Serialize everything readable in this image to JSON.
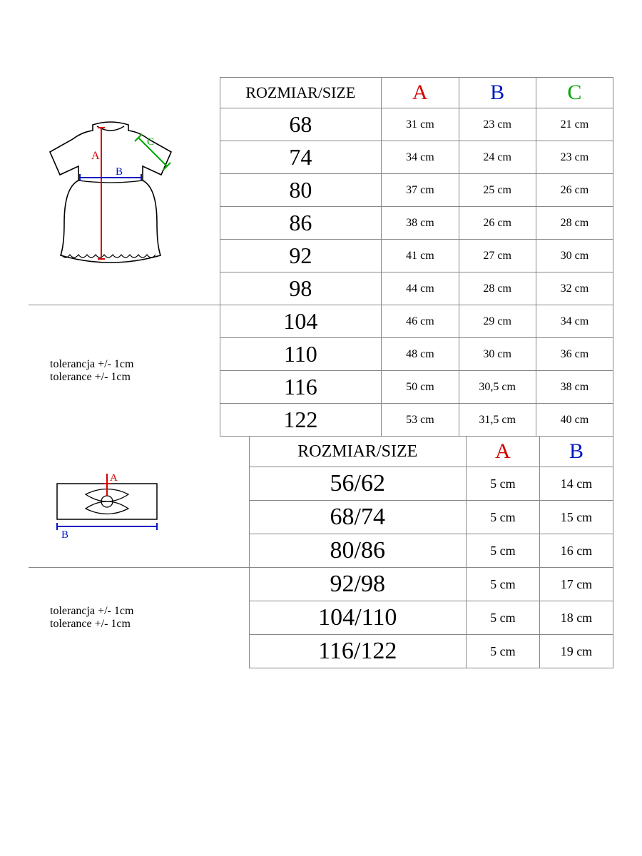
{
  "colors": {
    "A": "#d40000",
    "B": "#0018c4",
    "C": "#00a800",
    "border": "#888888",
    "text": "#000000",
    "bg": "#ffffff"
  },
  "table1": {
    "header": {
      "size_label": "ROZMIAR/SIZE",
      "A": "A",
      "B": "B",
      "C": "C"
    },
    "rows": [
      {
        "size": "68",
        "A": "31 cm",
        "B": "23 cm",
        "C": "21 cm"
      },
      {
        "size": "74",
        "A": "34 cm",
        "B": "24 cm",
        "C": "23 cm"
      },
      {
        "size": "80",
        "A": "37 cm",
        "B": "25 cm",
        "C": "26 cm"
      },
      {
        "size": "86",
        "A": "38 cm",
        "B": "26 cm",
        "C": "28 cm"
      },
      {
        "size": "92",
        "A": "41 cm",
        "B": "27 cm",
        "C": "30 cm"
      },
      {
        "size": "98",
        "A": "44 cm",
        "B": "28 cm",
        "C": "32 cm"
      },
      {
        "size": "104",
        "A": "46 cm",
        "B": "29 cm",
        "C": "34 cm"
      },
      {
        "size": "110",
        "A": "48 cm",
        "B": "30 cm",
        "C": "36 cm"
      },
      {
        "size": "116",
        "A": "50 cm",
        "B": "30,5 cm",
        "C": "38 cm"
      },
      {
        "size": "122",
        "A": "53 cm",
        "B": "31,5 cm",
        "C": "40 cm"
      }
    ],
    "tolerance": {
      "pl": "tolerancja +/- 1cm",
      "en": "tolerance +/- 1cm"
    },
    "diagram": {
      "labels": {
        "A": "A",
        "B": "B",
        "C": "C"
      }
    },
    "col_widths": [
      "260px",
      "220px",
      "105px",
      "105px",
      "105px"
    ]
  },
  "table2": {
    "header": {
      "size_label": "ROZMIAR/SIZE",
      "A": "A",
      "B": "B"
    },
    "rows": [
      {
        "size": "56/62",
        "A": "5 cm",
        "B": "14 cm"
      },
      {
        "size": "68/74",
        "A": "5 cm",
        "B": "15 cm"
      },
      {
        "size": "80/86",
        "A": "5 cm",
        "B": "16 cm"
      },
      {
        "size": "92/98",
        "A": "5 cm",
        "B": "17 cm"
      },
      {
        "size": "104/110",
        "A": "5 cm",
        "B": "18 cm"
      },
      {
        "size": "116/122",
        "A": "5 cm",
        "B": "19 cm"
      }
    ],
    "tolerance": {
      "pl": "tolerancja +/- 1cm",
      "en": "tolerance +/- 1cm"
    },
    "diagram": {
      "labels": {
        "A": "A",
        "B": "B"
      }
    },
    "col_widths": [
      "300px",
      "295px",
      "100px",
      "100px"
    ]
  }
}
